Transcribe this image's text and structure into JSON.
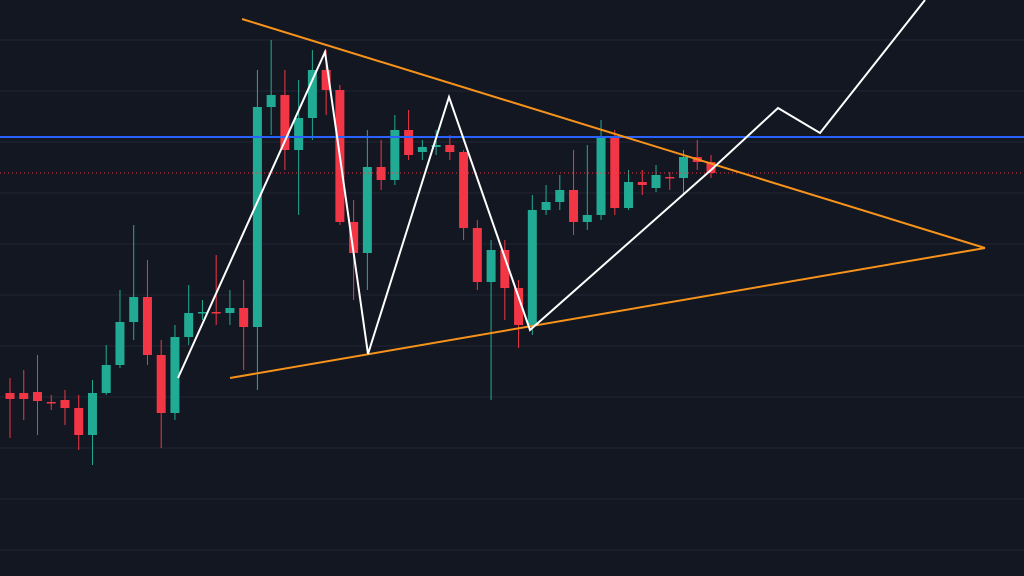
{
  "chart_data": {
    "type": "candlestick",
    "up_color": "#22ab94",
    "down_color": "#f23645",
    "background": "#131722",
    "grid": true,
    "ylim": [
      0,
      576
    ],
    "yticks": [
      26,
      77,
      128,
      179,
      230,
      281,
      332,
      383,
      434,
      485,
      536
    ],
    "open": [
      183,
      183,
      184,
      174,
      176,
      168,
      141,
      183,
      211,
      254,
      279,
      221,
      163,
      239,
      263,
      264,
      263,
      268,
      249,
      469,
      481,
      426,
      458,
      506,
      486,
      354,
      323,
      409,
      396,
      446,
      424,
      429,
      431,
      424,
      348,
      294,
      326,
      288,
      251,
      366,
      374,
      386,
      354,
      361,
      439,
      368,
      394,
      388,
      399,
      398,
      419,
      414
    ],
    "high": [
      198,
      206,
      221,
      181,
      186,
      181,
      196,
      231,
      286,
      351,
      316,
      236,
      251,
      291,
      276,
      321,
      286,
      296,
      506,
      536,
      506,
      496,
      526,
      526,
      491,
      376,
      446,
      436,
      461,
      466,
      436,
      446,
      441,
      426,
      356,
      336,
      336,
      296,
      381,
      391,
      401,
      426,
      431,
      456,
      446,
      406,
      406,
      411,
      404,
      426,
      436,
      421
    ],
    "low": [
      138,
      156,
      141,
      166,
      151,
      126,
      111,
      181,
      208,
      236,
      211,
      128,
      156,
      231,
      256,
      251,
      251,
      206,
      186,
      441,
      406,
      361,
      436,
      461,
      351,
      276,
      286,
      386,
      391,
      416,
      416,
      421,
      416,
      336,
      286,
      176,
      256,
      228,
      241,
      361,
      366,
      341,
      346,
      356,
      361,
      366,
      381,
      384,
      386,
      381,
      406,
      398
    ],
    "close": [
      177,
      177,
      175,
      173,
      168,
      141,
      183,
      211,
      254,
      279,
      221,
      163,
      239,
      263,
      264,
      263,
      268,
      249,
      469,
      481,
      426,
      458,
      506,
      486,
      354,
      323,
      409,
      396,
      446,
      421,
      429,
      431,
      424,
      348,
      294,
      326,
      288,
      251,
      366,
      374,
      386,
      354,
      361,
      439,
      368,
      394,
      391,
      401,
      398,
      419,
      414,
      403
    ]
  }
}
